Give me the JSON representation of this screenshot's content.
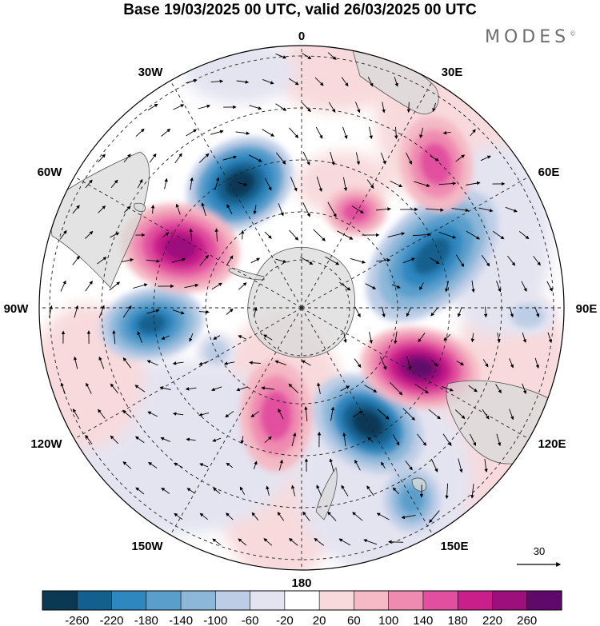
{
  "title": "Base 19/03/2025 00 UTC, valid 26/03/2025 00 UTC",
  "brand": "MODES",
  "brand_mark": "©",
  "longitude_labels": [
    "0",
    "30E",
    "60E",
    "90E",
    "120E",
    "150E",
    "180",
    "150W",
    "120W",
    "90W",
    "60W",
    "30W"
  ],
  "reference_vector_label": "30",
  "colorbar": {
    "colors": [
      "#0b3954",
      "#13608e",
      "#2f87bf",
      "#5a9fcc",
      "#8cb7d9",
      "#bdcde6",
      "#e4e4f1",
      "#ffffff",
      "#f8dadc",
      "#f4b9c4",
      "#ef8bb1",
      "#e1509e",
      "#c91f8a",
      "#9c0f7d",
      "#5f0a6b"
    ],
    "tick_labels": [
      "-260",
      "-220",
      "-180",
      "-140",
      "-100",
      "-60",
      "-20",
      "20",
      "60",
      "100",
      "140",
      "180",
      "220",
      "260"
    ]
  },
  "colors": {
    "land": "#d9d9d9",
    "coastline": "#555555",
    "grid": "#222222",
    "arrow": "#000000"
  }
}
